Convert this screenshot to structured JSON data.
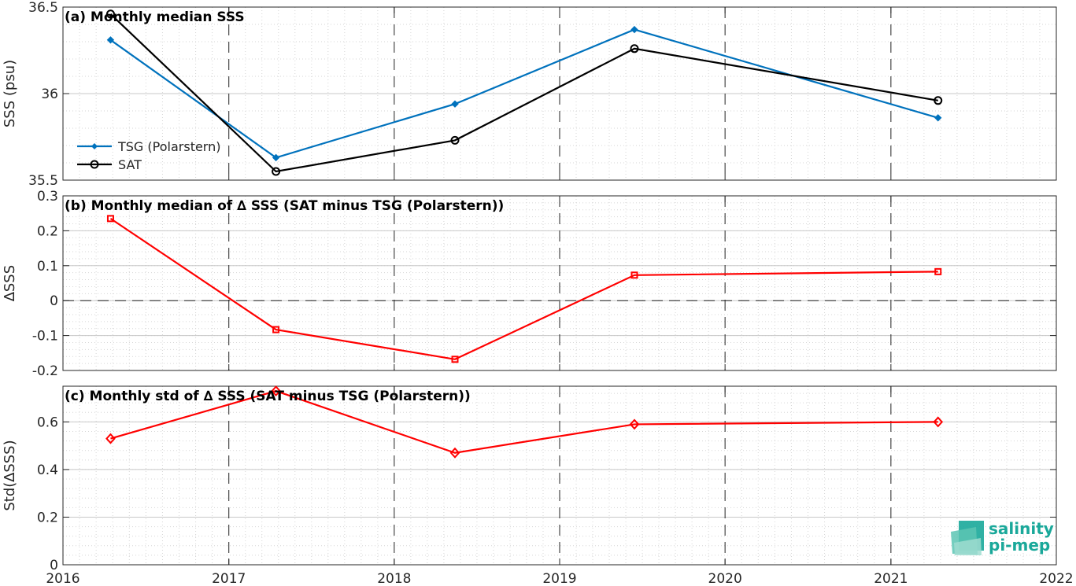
{
  "chart_data": [
    {
      "type": "line",
      "title": "(a) Monthly median SSS",
      "ylabel": "SSS (psu)",
      "ylim": [
        35.5,
        36.5
      ],
      "yticks": [
        "35.5",
        "36",
        "36.5"
      ],
      "ytick_values": [
        35.5,
        36.0,
        36.5
      ],
      "legend_position": "left",
      "series": [
        {
          "name": "TSG (Polarstern)",
          "color": "#0072BD",
          "marker": "diamond-filled",
          "x": [
            "2016-04-15",
            "2017-04-15",
            "2018-05-15",
            "2019-06-15",
            "2021-04-15"
          ],
          "values": [
            36.31,
            35.63,
            35.94,
            36.37,
            35.86
          ]
        },
        {
          "name": "SAT",
          "color": "#000000",
          "marker": "circle",
          "x": [
            "2016-04-15",
            "2017-04-15",
            "2018-05-15",
            "2019-06-15",
            "2021-04-15"
          ],
          "values": [
            36.46,
            35.55,
            35.73,
            36.26,
            35.96
          ]
        }
      ]
    },
    {
      "type": "line",
      "title": "(b) Monthly median of ∆ SSS (SAT minus TSG (Polarstern))",
      "ylabel": "∆SSS",
      "ylim": [
        -0.2,
        0.3
      ],
      "yticks": [
        "-0.2",
        "-0.1",
        "0",
        "0.1",
        "0.2",
        "0.3"
      ],
      "ytick_values": [
        -0.2,
        -0.1,
        0,
        0.1,
        0.2,
        0.3
      ],
      "reference_line": 0,
      "series": [
        {
          "color": "#FF0000",
          "marker": "square",
          "x": [
            "2016-04-15",
            "2017-04-15",
            "2018-05-15",
            "2019-06-15",
            "2021-04-15"
          ],
          "values": [
            0.235,
            -0.083,
            -0.168,
            0.073,
            0.083
          ]
        }
      ]
    },
    {
      "type": "line",
      "title": "(c) Monthly std of ∆ SSS (SAT minus TSG (Polarstern))",
      "ylabel": "Std(∆SSS)",
      "ylim": [
        0,
        0.75
      ],
      "yticks": [
        "0",
        "0.2",
        "0.4",
        "0.6"
      ],
      "ytick_values": [
        0,
        0.2,
        0.4,
        0.6
      ],
      "xlim": [
        "2016-01-01",
        "2022-01-01"
      ],
      "xticks": [
        "2016",
        "2017",
        "2018",
        "2019",
        "2020",
        "2021",
        "2022"
      ],
      "series": [
        {
          "color": "#FF0000",
          "marker": "diamond",
          "x": [
            "2016-04-15",
            "2017-04-15",
            "2018-05-15",
            "2019-06-15",
            "2021-04-15"
          ],
          "values": [
            0.53,
            0.73,
            0.47,
            0.59,
            0.6
          ]
        }
      ]
    }
  ],
  "logo": {
    "line1": "salinity",
    "line2": "pi-mep",
    "color": "#1aa89a"
  },
  "grid": true,
  "year_dividers": true
}
